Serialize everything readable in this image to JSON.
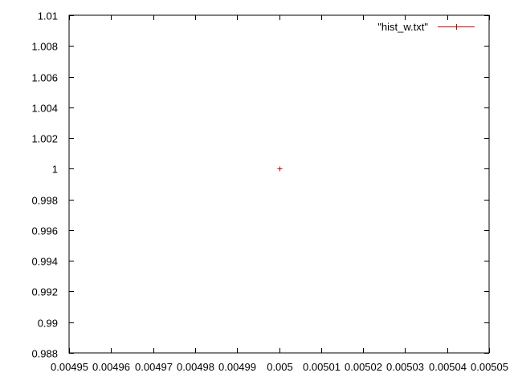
{
  "chart_data": {
    "type": "scatter",
    "title": "",
    "xlabel": "",
    "ylabel": "",
    "xlim": [
      0.00495,
      0.00505
    ],
    "ylim": [
      0.988,
      1.01
    ],
    "x_ticks": [
      {
        "value": 0.00495,
        "label": "0.00495"
      },
      {
        "value": 0.00496,
        "label": "0.00496"
      },
      {
        "value": 0.00497,
        "label": "0.00497"
      },
      {
        "value": 0.00498,
        "label": "0.00498"
      },
      {
        "value": 0.00499,
        "label": "0.00499"
      },
      {
        "value": 0.005,
        "label": "0.005"
      },
      {
        "value": 0.00501,
        "label": "0.00501"
      },
      {
        "value": 0.00502,
        "label": "0.00502"
      },
      {
        "value": 0.00503,
        "label": "0.00503"
      },
      {
        "value": 0.00504,
        "label": "0.00504"
      },
      {
        "value": 0.00505,
        "label": "0.00505"
      }
    ],
    "y_ticks": [
      {
        "value": 0.988,
        "label": "0.988"
      },
      {
        "value": 0.99,
        "label": "0.99"
      },
      {
        "value": 0.992,
        "label": "0.992"
      },
      {
        "value": 0.994,
        "label": "0.994"
      },
      {
        "value": 0.996,
        "label": "0.996"
      },
      {
        "value": 0.998,
        "label": "0.998"
      },
      {
        "value": 1.0,
        "label": "1"
      },
      {
        "value": 1.002,
        "label": "1.002"
      },
      {
        "value": 1.004,
        "label": "1.004"
      },
      {
        "value": 1.006,
        "label": "1.006"
      },
      {
        "value": 1.008,
        "label": "1.008"
      },
      {
        "value": 1.01,
        "label": "1.01"
      }
    ],
    "grid": false,
    "legend_position": "top-right",
    "series": [
      {
        "name": "\"hist_w.txt\"",
        "color": "#cc0000",
        "marker": "plus",
        "points": [
          {
            "x": 0.005,
            "y": 1.0
          }
        ]
      }
    ]
  }
}
